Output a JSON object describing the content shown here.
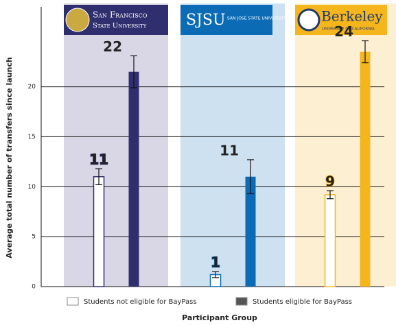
{
  "chart_data": {
    "type": "bar",
    "y_label": "Average total number of transfers since launch",
    "x_label": "Participant Group",
    "categories": [
      "San Francisco",
      "SJSU",
      "Berkeley"
    ],
    "category_sublabels": [
      "State University",
      "San José State University",
      "University of California"
    ],
    "group_colors": [
      "#2f2e6e",
      "#0b6bb5",
      "#f5b51c"
    ],
    "group_backgrounds": [
      "#d9d7e6",
      "#cde1f1",
      "#fdf0d2"
    ],
    "series": [
      {
        "name": "Students not eligible for BayPass",
        "color": "#ffffff",
        "values": [
          11.0,
          1.2,
          9.2
        ],
        "errors": [
          0.8,
          0.3,
          0.4
        ],
        "value_labels": [
          "11",
          "1",
          "9"
        ]
      },
      {
        "name": "Students eligible for BayPass",
        "color": "#555555",
        "values": [
          21.5,
          11.0,
          23.5
        ],
        "errors": [
          1.6,
          1.7,
          1.1
        ],
        "value_labels": [
          "22",
          "11",
          "24"
        ]
      }
    ],
    "ylim": [
      0,
      28
    ],
    "yticks": [
      0,
      5,
      10,
      15,
      20
    ],
    "grid": true
  }
}
